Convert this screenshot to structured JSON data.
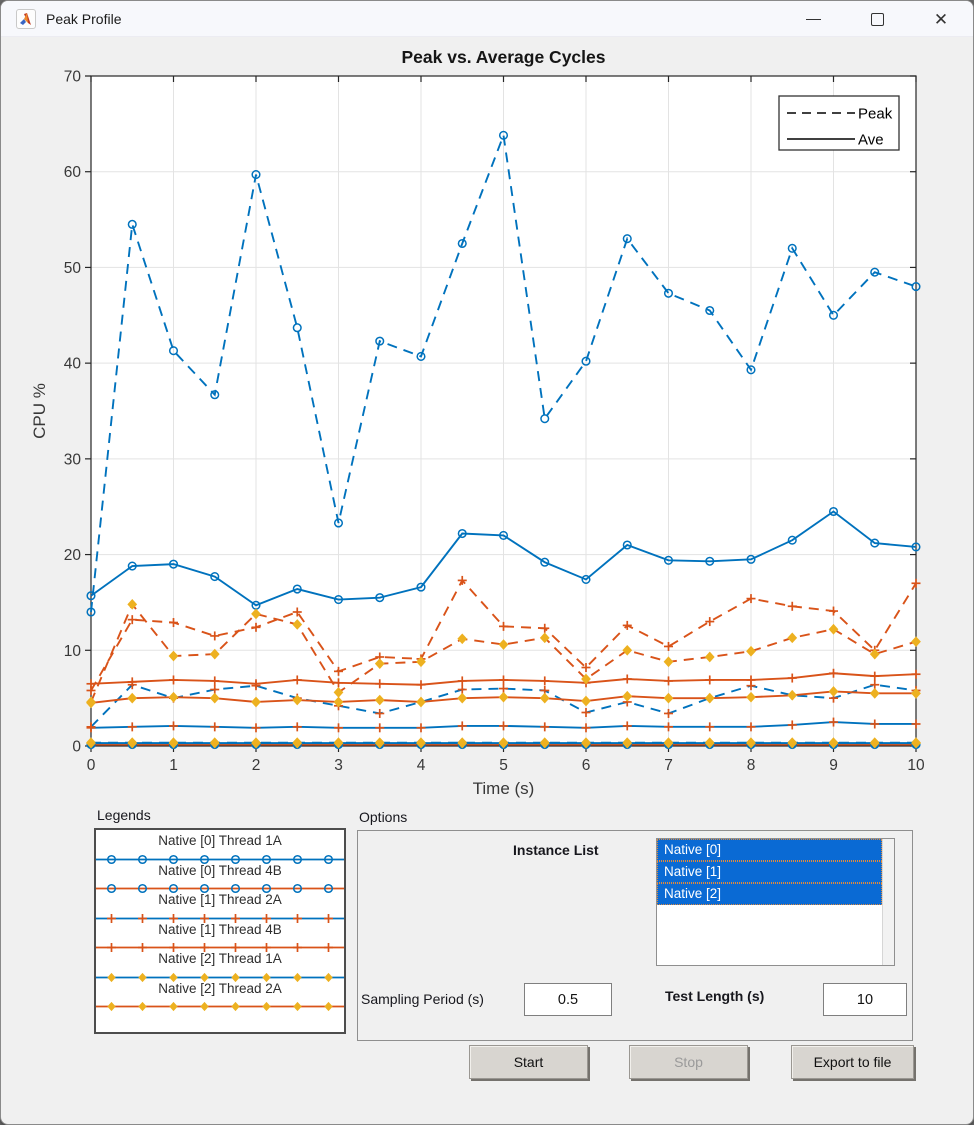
{
  "window": {
    "title": "Peak Profile",
    "icons": {
      "app": "matlab-logo",
      "minimize": "minimize",
      "maximize": "maximize",
      "close": "close"
    }
  },
  "chart_data": {
    "type": "line",
    "title": "Peak vs. Average Cycles",
    "xlabel": "Time (s)",
    "ylabel": "CPU %",
    "xlim": [
      0,
      10
    ],
    "ylim": [
      0,
      70
    ],
    "xticks": [
      0,
      1,
      2,
      3,
      4,
      5,
      6,
      7,
      8,
      9,
      10
    ],
    "yticks": [
      0,
      10,
      20,
      30,
      40,
      50,
      60,
      70
    ],
    "grid": true,
    "inner_legend": {
      "position": "top-right",
      "entries": [
        {
          "label": "Peak",
          "style": "dashed"
        },
        {
          "label": "Ave",
          "style": "solid"
        }
      ]
    },
    "x": [
      0,
      0.5,
      1,
      1.5,
      2,
      2.5,
      3,
      3.5,
      4,
      4.5,
      5,
      5.5,
      6,
      6.5,
      7,
      7.5,
      8,
      8.5,
      9,
      9.5,
      10
    ],
    "series": [
      {
        "name": "Peak Native [0] Thread 1A",
        "color": "#0072BD",
        "dash": true,
        "marker": "circle",
        "marker_color": "#0072BD",
        "values": [
          14.0,
          54.5,
          41.3,
          36.7,
          59.7,
          43.7,
          23.3,
          42.3,
          40.7,
          52.5,
          63.8,
          34.2,
          40.2,
          53.0,
          47.3,
          45.5,
          39.3,
          52.0,
          45.0,
          49.5,
          48.0
        ]
      },
      {
        "name": "Ave Native [0] Thread 1A",
        "color": "#0072BD",
        "dash": false,
        "marker": "circle",
        "marker_color": "#0072BD",
        "values": [
          15.7,
          18.8,
          19.0,
          17.7,
          14.7,
          16.4,
          15.3,
          15.5,
          16.6,
          22.2,
          22.0,
          19.2,
          17.4,
          21.0,
          19.4,
          19.3,
          19.5,
          21.5,
          24.5,
          21.2,
          20.8
        ]
      },
      {
        "name": "Peak Native [0] Thread 4B",
        "color": "#D95319",
        "dash": true,
        "marker": "circle",
        "marker_color": "#0072BD",
        "values": [
          0.2,
          0.2,
          0.2,
          0.2,
          0.2,
          0.2,
          0.2,
          0.2,
          0.2,
          0.2,
          0.2,
          0.2,
          0.2,
          0.2,
          0.2,
          0.2,
          0.2,
          0.2,
          0.2,
          0.2,
          0.2
        ]
      },
      {
        "name": "Ave Native [0] Thread 4B",
        "color": "#D95319",
        "dash": false,
        "marker": "circle",
        "marker_color": "#0072BD",
        "values": [
          0.15,
          0.15,
          0.15,
          0.15,
          0.15,
          0.15,
          0.15,
          0.15,
          0.15,
          0.15,
          0.15,
          0.15,
          0.15,
          0.15,
          0.15,
          0.15,
          0.15,
          0.15,
          0.15,
          0.15,
          0.15
        ]
      },
      {
        "name": "Peak Native [1] Thread 2A",
        "color": "#0072BD",
        "dash": true,
        "marker": "plus",
        "marker_color": "#D95319",
        "values": [
          2.0,
          6.4,
          5.0,
          5.9,
          6.3,
          5.0,
          4.2,
          3.4,
          4.6,
          5.9,
          6.0,
          5.8,
          3.5,
          4.6,
          3.4,
          5.0,
          6.3,
          5.3,
          5.0,
          6.4,
          5.8
        ]
      },
      {
        "name": "Ave Native [1] Thread 2A",
        "color": "#0072BD",
        "dash": false,
        "marker": "plus",
        "marker_color": "#D95319",
        "values": [
          1.9,
          2.0,
          2.1,
          2.0,
          1.9,
          2.0,
          1.9,
          1.9,
          1.9,
          2.1,
          2.1,
          2.0,
          1.9,
          2.1,
          2.0,
          2.0,
          2.0,
          2.2,
          2.5,
          2.3,
          2.3
        ]
      },
      {
        "name": "Peak Native [1] Thread 4B",
        "color": "#D95319",
        "dash": true,
        "marker": "plus",
        "marker_color": "#D95319",
        "values": [
          5.8,
          13.2,
          12.9,
          11.5,
          12.4,
          14.0,
          7.8,
          9.3,
          9.1,
          17.3,
          12.5,
          12.3,
          8.2,
          12.6,
          10.4,
          13.0,
          15.4,
          14.6,
          14.1,
          10.0,
          17.0
        ]
      },
      {
        "name": "Ave Native [1] Thread 4B",
        "color": "#D95319",
        "dash": false,
        "marker": "plus",
        "marker_color": "#D95319",
        "values": [
          6.5,
          6.7,
          6.9,
          6.8,
          6.5,
          6.9,
          6.6,
          6.5,
          6.4,
          6.8,
          6.9,
          6.8,
          6.6,
          7.0,
          6.8,
          6.9,
          6.9,
          7.1,
          7.6,
          7.3,
          7.5
        ]
      },
      {
        "name": "Peak Native [2] Thread 1A",
        "color": "#0072BD",
        "dash": true,
        "marker": "diamond",
        "marker_color": "#EDB120",
        "values": [
          0.35,
          0.35,
          0.35,
          0.35,
          0.35,
          0.35,
          0.35,
          0.35,
          0.35,
          0.35,
          0.35,
          0.35,
          0.35,
          0.35,
          0.35,
          0.35,
          0.35,
          0.35,
          0.35,
          0.35,
          0.35
        ]
      },
      {
        "name": "Ave Native [2] Thread 1A",
        "color": "#0072BD",
        "dash": false,
        "marker": "diamond",
        "marker_color": "#EDB120",
        "values": [
          0.3,
          0.3,
          0.3,
          0.3,
          0.3,
          0.3,
          0.3,
          0.3,
          0.3,
          0.3,
          0.3,
          0.3,
          0.3,
          0.3,
          0.3,
          0.3,
          0.3,
          0.3,
          0.3,
          0.3,
          0.3
        ]
      },
      {
        "name": "Peak Native [2] Thread 2A",
        "color": "#D95319",
        "dash": true,
        "marker": "diamond",
        "marker_color": "#EDB120",
        "values": [
          4.6,
          14.8,
          9.4,
          9.6,
          13.8,
          12.7,
          5.6,
          8.6,
          8.8,
          11.2,
          10.6,
          11.3,
          7.0,
          10.0,
          8.8,
          9.3,
          9.9,
          11.3,
          12.2,
          9.6,
          10.9
        ]
      },
      {
        "name": "Ave Native [2] Thread 2A",
        "color": "#D95319",
        "dash": false,
        "marker": "diamond",
        "marker_color": "#EDB120",
        "values": [
          4.5,
          5.0,
          5.1,
          5.0,
          4.6,
          4.8,
          4.6,
          4.8,
          4.6,
          5.0,
          5.1,
          5.0,
          4.7,
          5.2,
          5.0,
          5.0,
          5.1,
          5.3,
          5.7,
          5.5,
          5.5
        ]
      }
    ],
    "colors": {
      "blue": "#0072BD",
      "orange": "#D95319",
      "gold": "#EDB120"
    }
  },
  "legends_panel": {
    "label": "Legends",
    "items": [
      {
        "label": "Native [0] Thread 1A",
        "line_color": "#0072BD",
        "marker": "circle",
        "marker_color": "#0072BD"
      },
      {
        "label": "Native [0] Thread 4B",
        "line_color": "#D95319",
        "marker": "circle",
        "marker_color": "#0072BD"
      },
      {
        "label": "Native [1] Thread 2A",
        "line_color": "#0072BD",
        "marker": "plus",
        "marker_color": "#D95319"
      },
      {
        "label": "Native [1] Thread 4B",
        "line_color": "#D95319",
        "marker": "plus",
        "marker_color": "#D95319"
      },
      {
        "label": "Native [2] Thread 1A",
        "line_color": "#0072BD",
        "marker": "diamond",
        "marker_color": "#EDB120"
      },
      {
        "label": "Native [2] Thread 2A",
        "line_color": "#D95319",
        "marker": "diamond",
        "marker_color": "#EDB120"
      }
    ]
  },
  "options_panel": {
    "label": "Options",
    "instance_list": {
      "label": "Instance List",
      "items": [
        {
          "label": "Native [0]",
          "selected": true
        },
        {
          "label": "Native [1]",
          "selected": true
        },
        {
          "label": "Native [2]",
          "selected": true
        }
      ],
      "selected_color": "#0a6ad4"
    },
    "sampling_period": {
      "label": "Sampling Period (s)",
      "value": "0.5"
    },
    "test_length": {
      "label": "Test Length (s)",
      "value": "10"
    }
  },
  "buttons": {
    "start": {
      "label": "Start",
      "enabled": true
    },
    "stop": {
      "label": "Stop",
      "enabled": false
    },
    "export": {
      "label": "Export to file",
      "enabled": true
    }
  }
}
